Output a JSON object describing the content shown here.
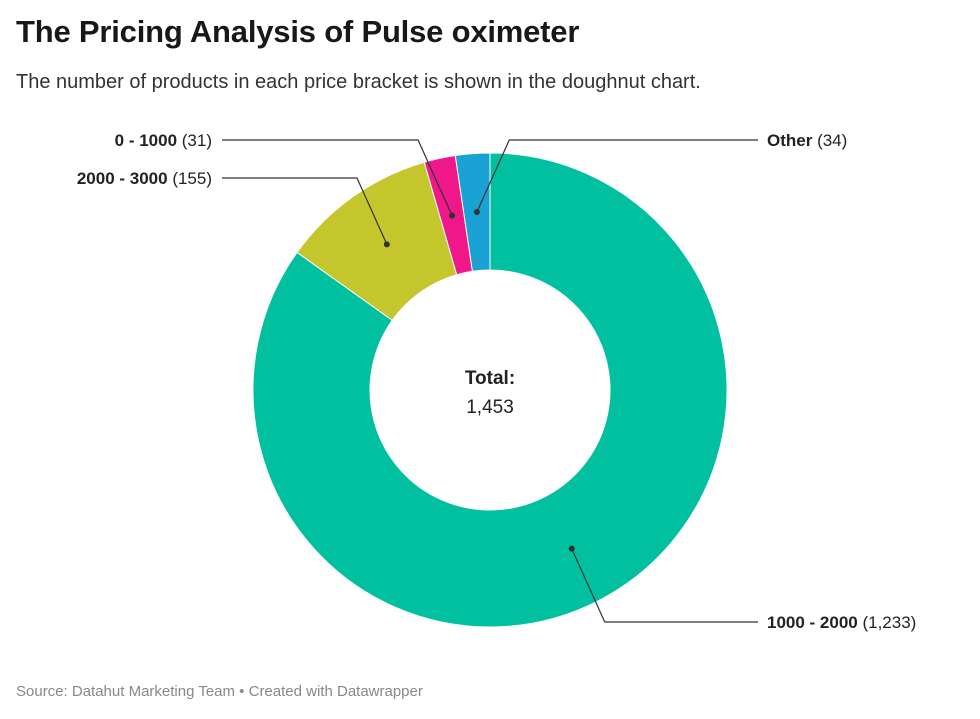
{
  "title": "The Pricing Analysis of Pulse oximeter",
  "subtitle": "The number of products in each price bracket is shown in the doughnut chart.",
  "source": {
    "prefix": "Source: ",
    "org": "Datahut Marketing Team",
    "separator": " • ",
    "credit": "Created with Datawrapper"
  },
  "chart_data": {
    "type": "pie",
    "variant": "doughnut",
    "center": {
      "label": "Total:",
      "value": "1,453"
    },
    "slices": [
      {
        "name": "1000 - 2000",
        "value": 1233,
        "display": "(1,233)",
        "color": "#00c09f"
      },
      {
        "name": "2000 - 3000",
        "value": 155,
        "display": "(155)",
        "color": "#c5c62c"
      },
      {
        "name": "0 - 1000",
        "value": 31,
        "display": "(31)",
        "color": "#f0178b"
      },
      {
        "name": "Other",
        "value": 34,
        "display": "(34)",
        "color": "#1aa2d4"
      }
    ]
  }
}
